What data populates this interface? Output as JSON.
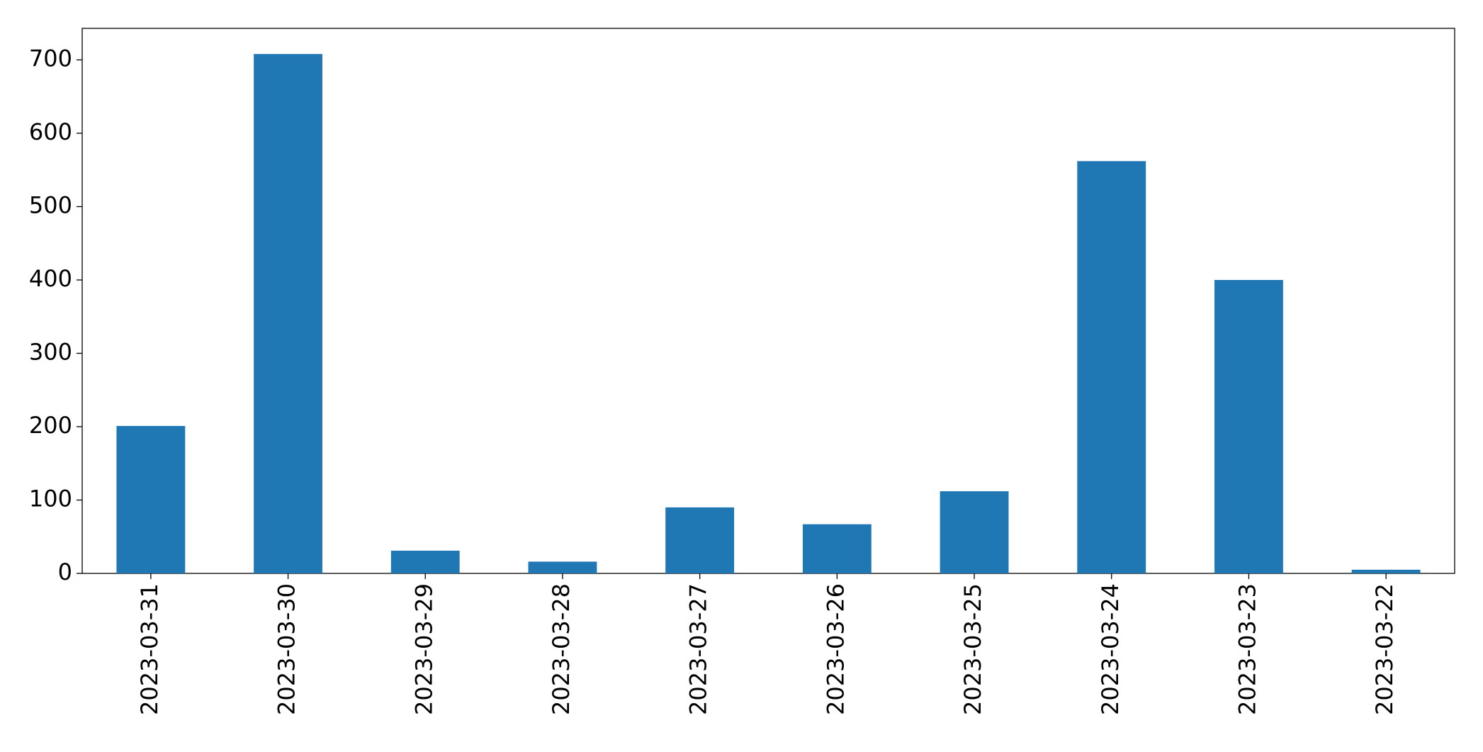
{
  "chart_data": {
    "type": "bar",
    "categories": [
      "2023-03-31",
      "2023-03-30",
      "2023-03-29",
      "2023-03-28",
      "2023-03-27",
      "2023-03-26",
      "2023-03-25",
      "2023-03-24",
      "2023-03-23",
      "2023-03-22"
    ],
    "values": [
      201,
      708,
      31,
      16,
      90,
      67,
      112,
      562,
      400,
      5
    ],
    "color": "#1f77b4",
    "ylim": [
      0,
      743
    ],
    "yticks": [
      0,
      100,
      200,
      300,
      400,
      500,
      600,
      700
    ],
    "grid": false
  }
}
